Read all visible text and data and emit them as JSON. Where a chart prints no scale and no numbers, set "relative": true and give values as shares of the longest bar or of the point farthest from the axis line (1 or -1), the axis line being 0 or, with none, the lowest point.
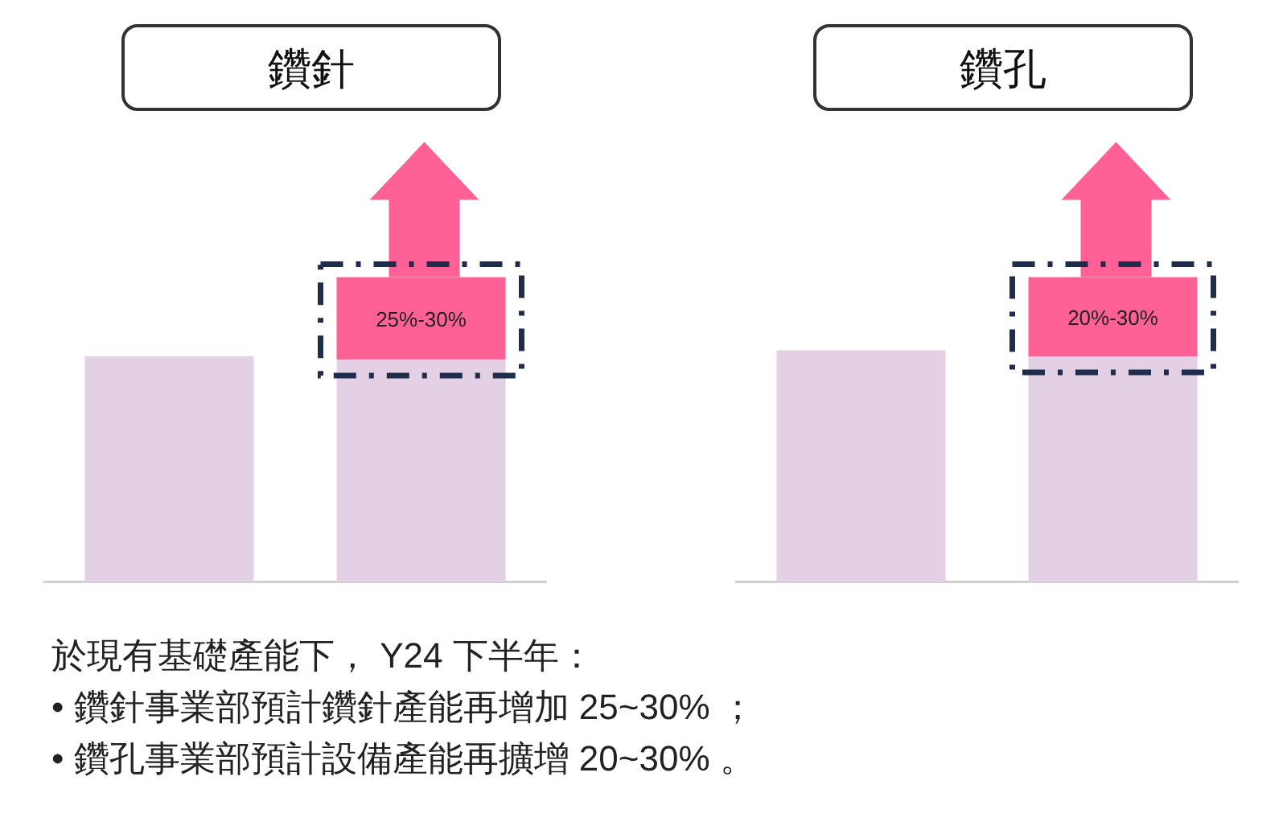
{
  "chart_data": [
    {
      "type": "bar",
      "title": "鑽針",
      "categories": [
        null,
        null
      ],
      "stacked": true,
      "relative": true,
      "series": [
        {
          "color": "#e4d0e4",
          "values": [
            0.74,
            0.73
          ]
        },
        {
          "color": "#ff6196",
          "values": [
            null,
            0.27
          ]
        }
      ],
      "annotations": [
        "25%-30%",
        "於現有基礎產能下， Y24 下半年：",
        "• 鑽針事業部預計鑽針產能再增加 25~30% ；",
        "• 鑽孔事業部預計設備產能再擴增 20~30% 。"
      ]
    },
    {
      "type": "bar",
      "title": "鑽孔",
      "categories": [
        null,
        null
      ],
      "stacked": true,
      "relative": true,
      "series": [
        {
          "color": "#e4d0e4",
          "values": [
            0.76,
            0.74
          ]
        },
        {
          "color": "#ff6196",
          "values": [
            null,
            0.26
          ]
        }
      ],
      "annotations": [
        "20%-30%"
      ]
    }
  ]
}
